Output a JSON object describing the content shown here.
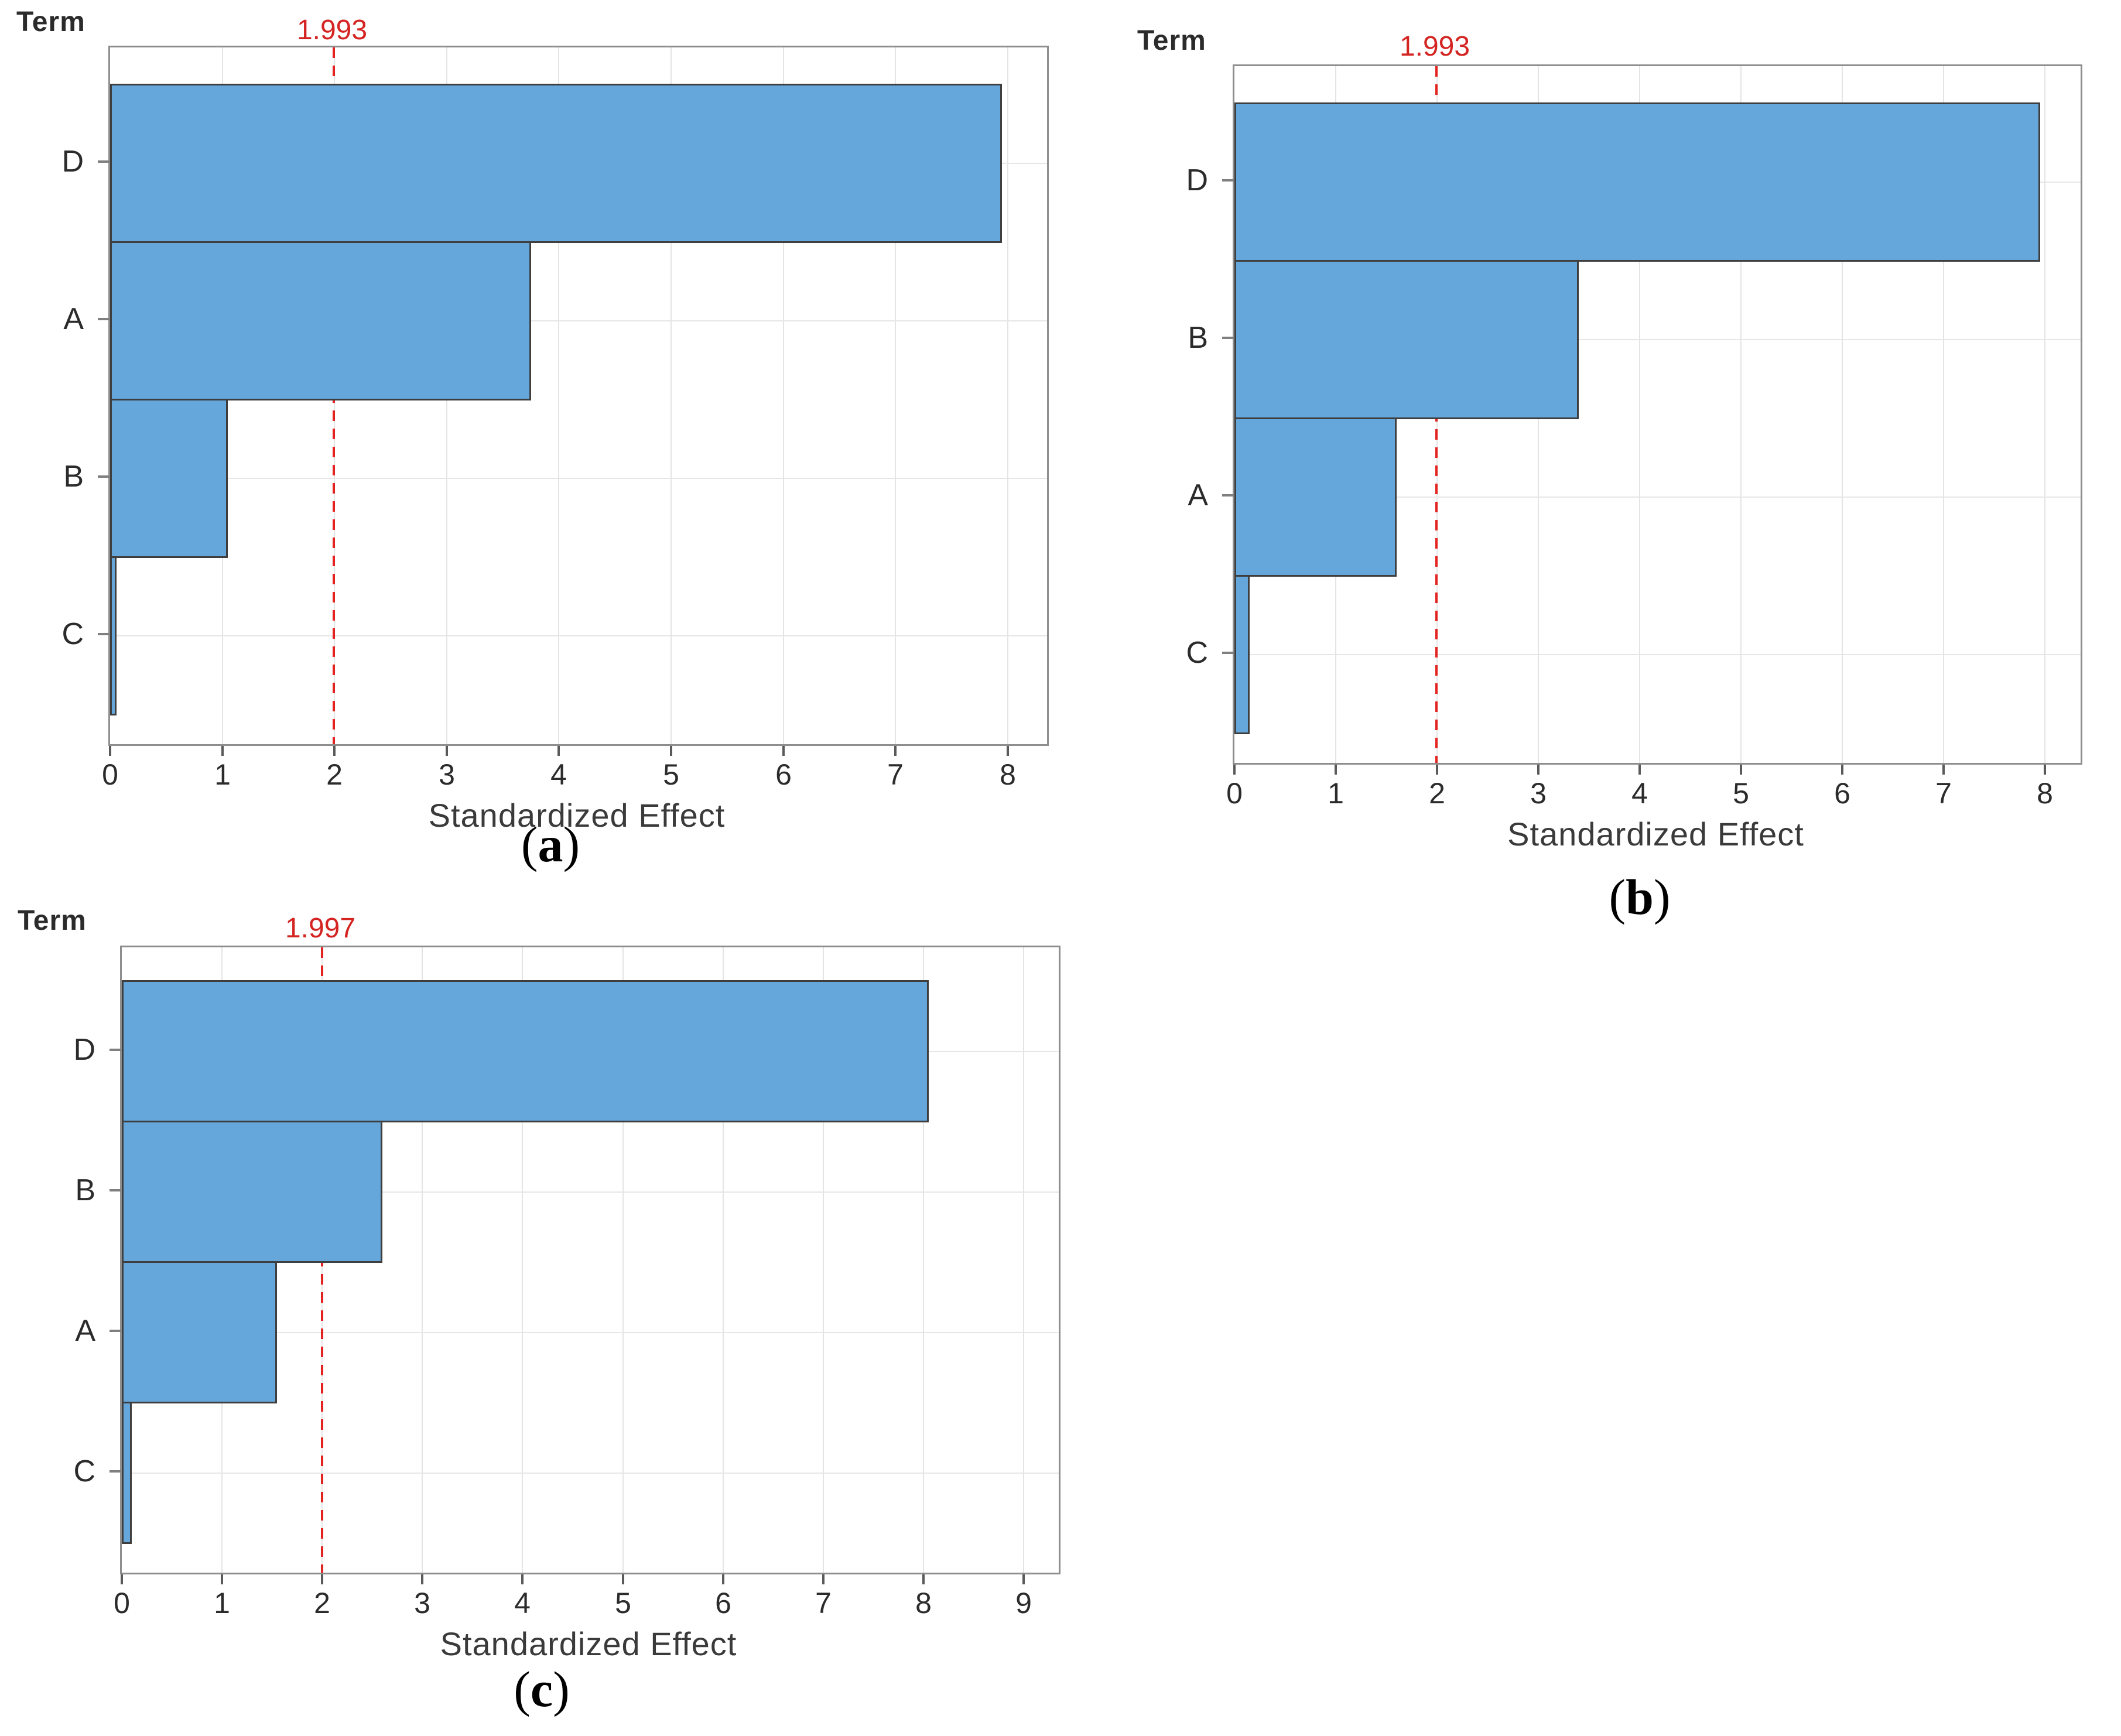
{
  "figure_colors": {
    "bar_fill": "#66a7db",
    "bar_border": "#3e3e3e",
    "reference_line": "#e42320",
    "plot_border": "#8e8e8e",
    "gridline": "#e4e4e4",
    "text": "#2b2b2b"
  },
  "chart_data": [
    {
      "type": "bar",
      "orientation": "horizontal",
      "title": "",
      "y_axis_label": "Term",
      "xlabel": "Standardized Effect",
      "caption_prefix": "(",
      "caption_letter": "a",
      "caption_suffix": ")",
      "ref_label": "1.993",
      "ref_value": 1.993,
      "categories": [
        "D",
        "A",
        "B",
        "C"
      ],
      "values": [
        7.95,
        3.75,
        1.05,
        0.06
      ],
      "x_ticks": [
        0,
        1,
        2,
        3,
        4,
        5,
        6,
        7,
        8
      ],
      "x_max": 8.35,
      "xlim": [
        0,
        8.35
      ],
      "grid": true,
      "legend": "none"
    },
    {
      "type": "bar",
      "orientation": "horizontal",
      "title": "",
      "y_axis_label": "Term",
      "xlabel": "Standardized Effect",
      "caption_prefix": "(",
      "caption_letter": "b",
      "caption_suffix": ")",
      "ref_label": "1.993",
      "ref_value": 1.993,
      "categories": [
        "D",
        "B",
        "A",
        "C"
      ],
      "values": [
        7.95,
        3.4,
        1.6,
        0.15
      ],
      "x_ticks": [
        0,
        1,
        2,
        3,
        4,
        5,
        6,
        7,
        8
      ],
      "x_max": 8.35,
      "xlim": [
        0,
        8.35
      ],
      "grid": true,
      "legend": "none"
    },
    {
      "type": "bar",
      "orientation": "horizontal",
      "title": "",
      "y_axis_label": "Term",
      "xlabel": "Standardized Effect",
      "caption_prefix": "(",
      "caption_letter": "c",
      "caption_suffix": ")",
      "ref_label": "1.997",
      "ref_value": 1.997,
      "categories": [
        "D",
        "B",
        "A",
        "C"
      ],
      "values": [
        8.05,
        2.6,
        1.55,
        0.1
      ],
      "x_ticks": [
        0,
        1,
        2,
        3,
        4,
        5,
        6,
        7,
        8,
        9
      ],
      "x_max": 9.35,
      "xlim": [
        0,
        9.35
      ],
      "grid": true,
      "legend": "none"
    }
  ]
}
